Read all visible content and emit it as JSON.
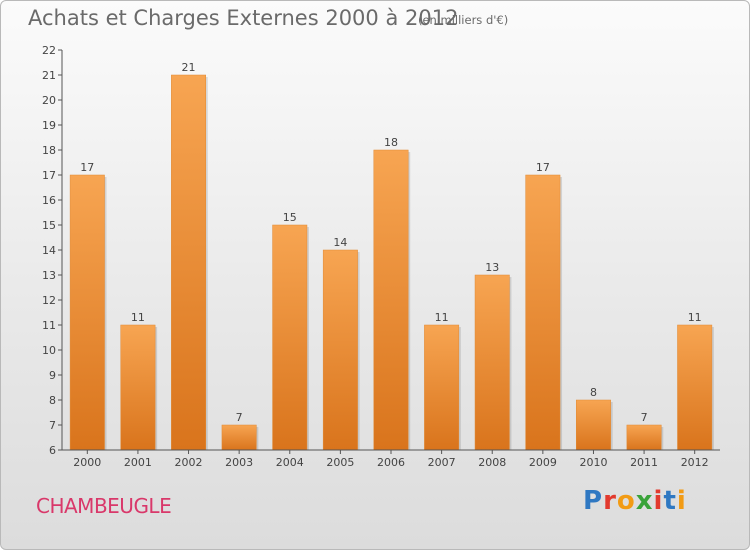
{
  "title": "Achats et Charges Externes 2000 à 2012",
  "subtitle": "(en milliers d'€)",
  "commune": "CHAMBEUGLE",
  "logo": {
    "text": "Proxiti",
    "letter_colors": [
      "#2f78c2",
      "#e23a2e",
      "#f29b14",
      "#3aa33a",
      "#e23a2e",
      "#2f78c2",
      "#f29b14"
    ]
  },
  "colors": {
    "bar_top": "#f7a552",
    "bar_bottom": "#d9741c",
    "title": "#6a6a6a",
    "commune": "#d9386a"
  },
  "chart_data": {
    "type": "bar",
    "categories": [
      "2000",
      "2001",
      "2002",
      "2003",
      "2004",
      "2005",
      "2006",
      "2007",
      "2008",
      "2009",
      "2010",
      "2011",
      "2012"
    ],
    "values": [
      17,
      11,
      21,
      7,
      15,
      14,
      18,
      11,
      13,
      17,
      8,
      7,
      11
    ],
    "ylim": [
      6,
      22
    ],
    "yticks": [
      "6",
      "7",
      "8",
      "9",
      "10",
      "11",
      "12",
      "13",
      "14",
      "15",
      "16",
      "17",
      "18",
      "19",
      "20",
      "21",
      "22"
    ],
    "grid": false,
    "legend": "none"
  }
}
